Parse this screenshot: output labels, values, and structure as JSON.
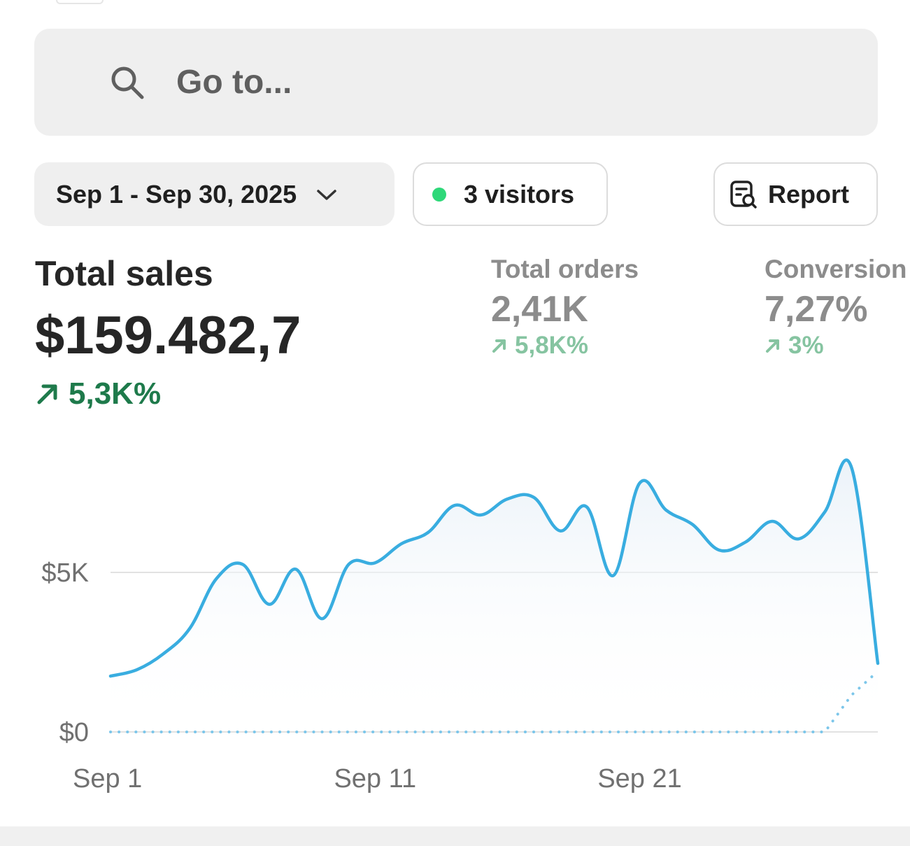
{
  "search": {
    "placeholder": "Go to...",
    "icon": "search-icon"
  },
  "filters": {
    "date_range": "Sep 1 - Sep 30, 2025",
    "visitors": "3 visitors",
    "visitors_status_color": "#2ed879",
    "report_label": "Report"
  },
  "metrics": {
    "total_sales": {
      "label": "Total sales",
      "value": "$159.482,7",
      "change": "5,3K%"
    },
    "total_orders": {
      "label": "Total orders",
      "value": "2,41K",
      "change": "5,8K%"
    },
    "conversion": {
      "label": "Conversion",
      "value": "7,27%",
      "change": "3%"
    }
  },
  "colors": {
    "accent_line": "#39ade0",
    "positive": "#1e7a4b",
    "positive_muted": "#86c4a1"
  },
  "chart_data": {
    "type": "area",
    "title": "",
    "xlabel": "",
    "ylabel": "",
    "x_tick_labels": [
      "Sep 1",
      "Sep 11",
      "Sep 21"
    ],
    "y_tick_labels": [
      "$0",
      "$5K"
    ],
    "ylim": [
      0,
      10000
    ],
    "grid": true,
    "series": [
      {
        "style": "solid",
        "x": [
          "Sep 1",
          "Sep 2",
          "Sep 3",
          "Sep 4",
          "Sep 5",
          "Sep 6",
          "Sep 7",
          "Sep 8",
          "Sep 9",
          "Sep 10",
          "Sep 11",
          "Sep 12",
          "Sep 13",
          "Sep 14",
          "Sep 15",
          "Sep 16",
          "Sep 17",
          "Sep 18",
          "Sep 19",
          "Sep 20",
          "Sep 21",
          "Sep 22",
          "Sep 23",
          "Sep 24",
          "Sep 25",
          "Sep 26",
          "Sep 27",
          "Sep 28",
          "Sep 29",
          "Sep 30"
        ],
        "values": [
          1750,
          1950,
          2450,
          3250,
          4800,
          5250,
          4000,
          5100,
          3550,
          5250,
          5300,
          5900,
          6250,
          7100,
          6800,
          7300,
          7350,
          6300,
          7050,
          4900,
          7800,
          6950,
          6500,
          5700,
          5950,
          6600,
          6050,
          6900,
          8300,
          2150
        ]
      },
      {
        "style": "dotted",
        "x": [
          "Sep 1",
          "Sep 2",
          "Sep 3",
          "Sep 4",
          "Sep 5",
          "Sep 6",
          "Sep 7",
          "Sep 8",
          "Sep 9",
          "Sep 10",
          "Sep 11",
          "Sep 12",
          "Sep 13",
          "Sep 14",
          "Sep 15",
          "Sep 16",
          "Sep 17",
          "Sep 18",
          "Sep 19",
          "Sep 20",
          "Sep 21",
          "Sep 22",
          "Sep 23",
          "Sep 24",
          "Sep 25",
          "Sep 26",
          "Sep 27",
          "Sep 28",
          "Sep 29",
          "Sep 30"
        ],
        "values": [
          0,
          0,
          0,
          0,
          0,
          0,
          0,
          0,
          0,
          0,
          0,
          0,
          0,
          0,
          0,
          0,
          0,
          0,
          0,
          0,
          0,
          0,
          0,
          0,
          0,
          0,
          0,
          0,
          1150,
          1900
        ]
      }
    ]
  }
}
